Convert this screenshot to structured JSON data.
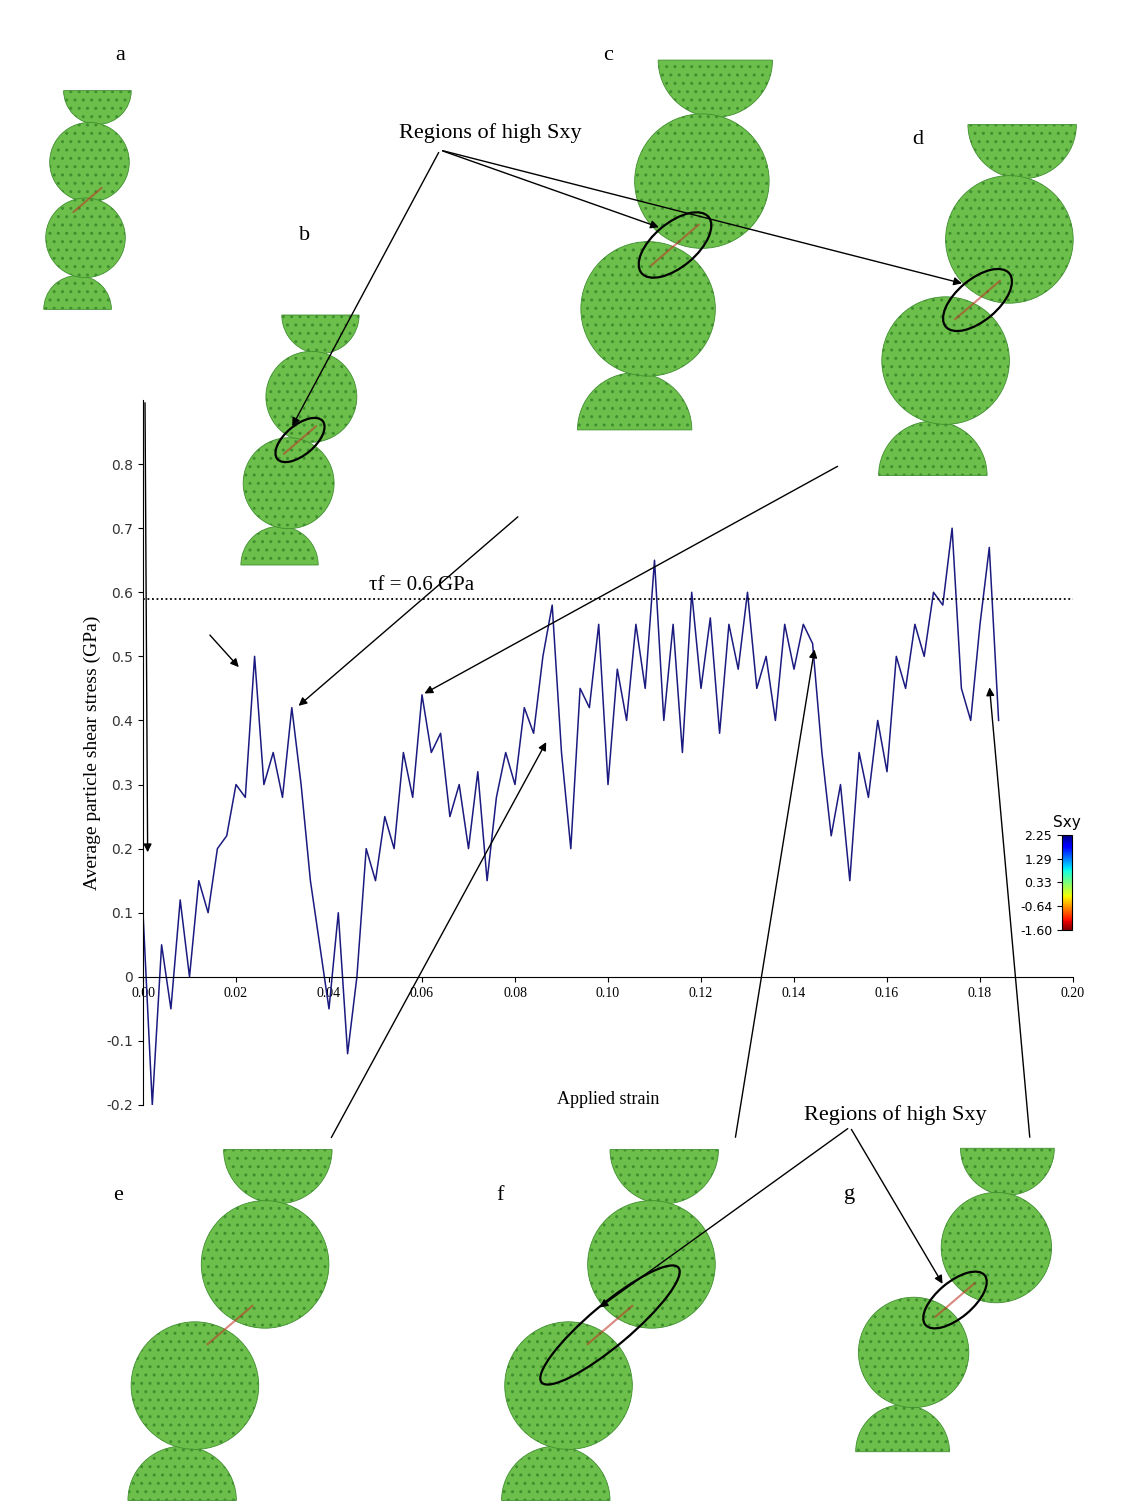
{
  "chart_data": {
    "type": "line",
    "xlabel": "Applied strain",
    "ylabel": "Average particle shear stress (GPa)",
    "color": "#1a1a80",
    "x": [
      0.0,
      0.002,
      0.004,
      0.006,
      0.008,
      0.01,
      0.012,
      0.014,
      0.016,
      0.018,
      0.02,
      0.022,
      0.024,
      0.026,
      0.028,
      0.03,
      0.032,
      0.034,
      0.036,
      0.038,
      0.04,
      0.042,
      0.044,
      0.046,
      0.048,
      0.05,
      0.052,
      0.054,
      0.056,
      0.058,
      0.06,
      0.062,
      0.064,
      0.066,
      0.068,
      0.07,
      0.072,
      0.074,
      0.076,
      0.078,
      0.08,
      0.082,
      0.084,
      0.086,
      0.088,
      0.09,
      0.092,
      0.094,
      0.096,
      0.098,
      0.1,
      0.102,
      0.104,
      0.106,
      0.108,
      0.11,
      0.112,
      0.114,
      0.116,
      0.118,
      0.12,
      0.122,
      0.124,
      0.126,
      0.128,
      0.13,
      0.132,
      0.134,
      0.136,
      0.138,
      0.14,
      0.142,
      0.144,
      0.146,
      0.148,
      0.15,
      0.152,
      0.154,
      0.156,
      0.158,
      0.16,
      0.162,
      0.164,
      0.166,
      0.168,
      0.17,
      0.172,
      0.174,
      0.176,
      0.178,
      0.18,
      0.182,
      0.184
    ],
    "values": [
      0.1,
      -0.2,
      0.05,
      -0.05,
      0.12,
      0.0,
      0.15,
      0.1,
      0.2,
      0.22,
      0.3,
      0.28,
      0.5,
      0.3,
      0.35,
      0.28,
      0.42,
      0.3,
      0.15,
      0.05,
      -0.05,
      0.1,
      -0.12,
      0.0,
      0.2,
      0.15,
      0.25,
      0.2,
      0.35,
      0.28,
      0.44,
      0.35,
      0.38,
      0.25,
      0.3,
      0.2,
      0.32,
      0.15,
      0.28,
      0.35,
      0.3,
      0.42,
      0.38,
      0.5,
      0.58,
      0.35,
      0.2,
      0.45,
      0.42,
      0.55,
      0.3,
      0.48,
      0.4,
      0.55,
      0.45,
      0.65,
      0.4,
      0.55,
      0.35,
      0.6,
      0.45,
      0.56,
      0.38,
      0.55,
      0.48,
      0.6,
      0.45,
      0.5,
      0.4,
      0.55,
      0.48,
      0.55,
      0.52,
      0.35,
      0.22,
      0.3,
      0.15,
      0.35,
      0.28,
      0.4,
      0.32,
      0.5,
      0.45,
      0.55,
      0.5,
      0.6,
      0.58,
      0.7,
      0.45,
      0.4,
      0.55,
      0.67,
      0.4
    ],
    "xlim": [
      0.0,
      0.2
    ],
    "xticks": [
      {
        "value": 0.0,
        "label": "0.00"
      },
      {
        "value": 0.02,
        "label": "0.02"
      },
      {
        "value": 0.04,
        "label": "0.04"
      },
      {
        "value": 0.06,
        "label": "0.06"
      },
      {
        "value": 0.08,
        "label": "0.08"
      },
      {
        "value": 0.1,
        "label": "0.10"
      },
      {
        "value": 0.12,
        "label": "0.12"
      },
      {
        "value": 0.14,
        "label": "0.14"
      },
      {
        "value": 0.16,
        "label": "0.16"
      },
      {
        "value": 0.18,
        "label": "0.18"
      },
      {
        "value": 0.2,
        "label": "0.20"
      }
    ],
    "ylim": [
      -0.2,
      0.9
    ],
    "yticks": [
      -0.2,
      -0.1,
      0,
      0.1,
      0.2,
      0.3,
      0.4,
      0.5,
      0.6,
      0.7,
      0.8
    ],
    "reference_line": {
      "value": 0.59,
      "label": "τf = 0.6 GPa"
    },
    "colorbar": {
      "title": "Sxy",
      "range": [
        -1.6,
        2.25
      ],
      "ticks": [
        2.25,
        1.29,
        0.33,
        -0.64,
        {
          "value": -1.6,
          "label": "-1.60"
        }
      ]
    },
    "snapshots": [
      {
        "label": "a",
        "points_to": {
          "x": 0.001,
          "y": 0.19
        }
      },
      {
        "label": "b",
        "points_to": {
          "x": 0.021,
          "y": 0.48
        }
      },
      {
        "label": "c",
        "points_to": {
          "x": 0.033,
          "y": 0.42
        }
      },
      {
        "label": "d",
        "points_to": {
          "x": 0.06,
          "y": 0.44
        }
      },
      {
        "label": "e",
        "points_to": {
          "x": 0.087,
          "y": 0.37
        }
      },
      {
        "label": "f",
        "points_to": {
          "x": 0.1445,
          "y": 0.515
        }
      },
      {
        "label": "g",
        "points_to": {
          "x": 0.182,
          "y": 0.456
        }
      }
    ],
    "annotations": [
      {
        "text": "Regions of high Sxy",
        "points_to": [
          "b",
          "c",
          "d"
        ]
      },
      {
        "text": "Regions of high Sxy",
        "points_to": [
          "f",
          "g"
        ]
      }
    ]
  }
}
